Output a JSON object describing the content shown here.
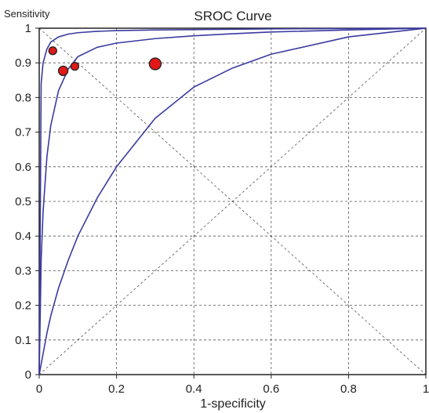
{
  "chart_data": {
    "type": "line",
    "title": "SROC Curve",
    "xlabel": "1-specificity",
    "ylabel": "Sensitivity",
    "xlim": [
      0,
      1
    ],
    "ylim": [
      0,
      1
    ],
    "xticks": [
      "0",
      "0.2",
      "0.4",
      "0.6",
      "0.8",
      "1"
    ],
    "yticks": [
      "0",
      "0.1",
      "0.2",
      "0.3",
      "0.4",
      "0.5",
      "0.6",
      "0.7",
      "0.8",
      "0.9",
      "1"
    ],
    "grid": true,
    "diagonals": true,
    "colors": {
      "curve": "#3a3aa0",
      "point_fill": "#e01818",
      "point_stroke": "#222222",
      "grid": "#555555"
    },
    "curves": [
      {
        "x": [
          0.005,
          0.01,
          0.02,
          0.03,
          0.05,
          0.075,
          0.1,
          0.15,
          0.2,
          0.3,
          0.4,
          0.5,
          0.6,
          0.8,
          1.0
        ],
        "y": [
          0.33,
          0.47,
          0.63,
          0.72,
          0.82,
          0.882,
          0.918,
          0.945,
          0.957,
          0.97,
          0.978,
          0.984,
          0.989,
          0.995,
          1.0
        ]
      },
      {
        "x": [
          0.005,
          0.01,
          0.02,
          0.03,
          0.05,
          0.075,
          0.1,
          0.15,
          0.2,
          0.3,
          0.4,
          0.5,
          0.6,
          0.8,
          1.0
        ],
        "y": [
          0.84,
          0.9,
          0.94,
          0.96,
          0.975,
          0.983,
          0.987,
          0.991,
          0.993,
          0.995,
          0.996,
          0.997,
          0.998,
          0.999,
          1.0
        ]
      },
      {
        "x": [
          0.005,
          0.01,
          0.02,
          0.03,
          0.05,
          0.075,
          0.1,
          0.15,
          0.2,
          0.3,
          0.4,
          0.5,
          0.6,
          0.8,
          1.0
        ],
        "y": [
          0.03,
          0.06,
          0.12,
          0.17,
          0.25,
          0.33,
          0.4,
          0.51,
          0.6,
          0.74,
          0.83,
          0.885,
          0.925,
          0.975,
          1.0
        ]
      }
    ],
    "points": [
      {
        "x": 0.035,
        "y": 0.935,
        "size": "small"
      },
      {
        "x": 0.062,
        "y": 0.877,
        "size": "medium"
      },
      {
        "x": 0.092,
        "y": 0.89,
        "size": "small"
      },
      {
        "x": 0.3,
        "y": 0.897,
        "size": "large"
      }
    ]
  }
}
